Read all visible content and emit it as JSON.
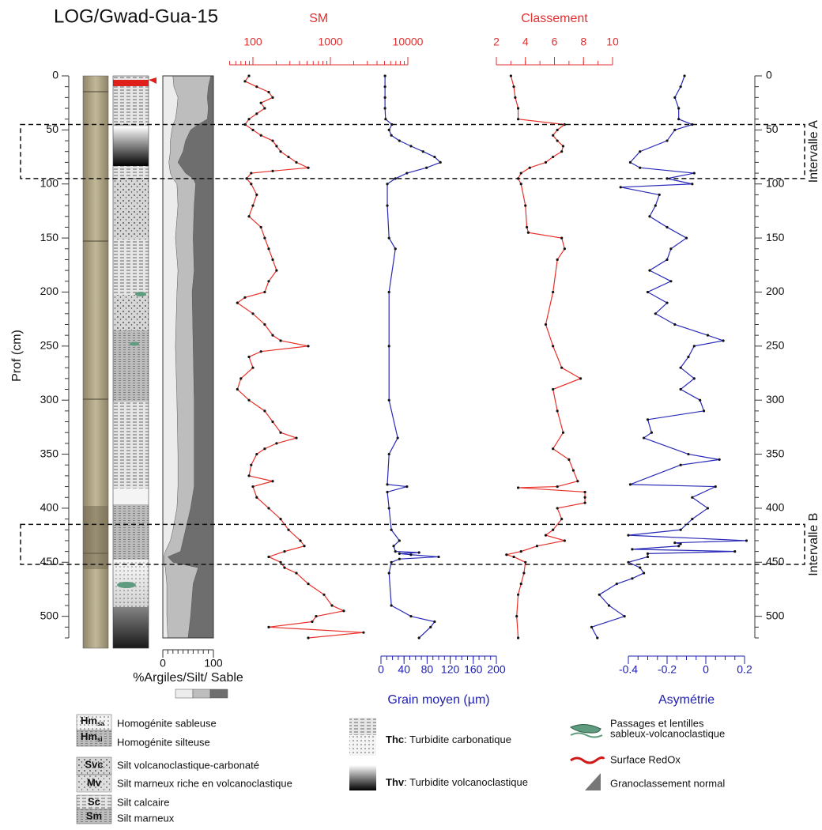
{
  "title": "LOG/Gwad-Gua-15",
  "depth_axis": {
    "label": "Prof (cm)",
    "ylim": [
      0,
      520
    ],
    "yticks": [
      0,
      50,
      100,
      150,
      200,
      250,
      300,
      350,
      400,
      450,
      500
    ]
  },
  "intervals": [
    {
      "label": "Intervalle A",
      "top": 45,
      "bottom": 95
    },
    {
      "label": "Intervalle B",
      "top": 415,
      "bottom": 452
    }
  ],
  "chart_data": [
    {
      "type": "area",
      "xlabel": "%Argiles/Silt/ Sable",
      "xlim": [
        0,
        100
      ],
      "xticks": [
        0,
        100
      ],
      "depths": [
        0,
        10,
        20,
        30,
        40,
        45,
        50,
        60,
        70,
        80,
        90,
        95,
        100,
        120,
        150,
        180,
        200,
        250,
        300,
        350,
        380,
        400,
        420,
        430,
        440,
        445,
        450,
        455,
        470,
        500,
        520
      ],
      "series": [
        {
          "color": "#ececec",
          "values": [
            20,
            22,
            30,
            28,
            25,
            20,
            18,
            15,
            15,
            12,
            15,
            20,
            28,
            30,
            25,
            30,
            28,
            25,
            28,
            30,
            30,
            28,
            20,
            15,
            5,
            2,
            2,
            5,
            8,
            8,
            10
          ]
        },
        {
          "color": "#bdbdbd",
          "values": [
            75,
            68,
            58,
            62,
            63,
            50,
            37,
            30,
            25,
            18,
            30,
            40,
            37,
            32,
            35,
            32,
            30,
            35,
            34,
            32,
            32,
            27,
            25,
            25,
            30,
            8,
            18,
            65,
            52,
            47,
            40
          ]
        },
        {
          "color": "#6e6e6e",
          "values": [
            5,
            10,
            12,
            10,
            12,
            30,
            45,
            55,
            60,
            70,
            55,
            40,
            35,
            38,
            40,
            38,
            42,
            40,
            38,
            38,
            38,
            45,
            55,
            60,
            65,
            90,
            80,
            30,
            40,
            45,
            50
          ]
        }
      ]
    },
    {
      "type": "line",
      "title": "SM",
      "log_x": true,
      "axis_position": "top",
      "color": "#e8302a",
      "marker_color": "#111111",
      "xlim": [
        50,
        10000
      ],
      "xticks": [
        100,
        1000,
        10000
      ],
      "depths": [
        0,
        5,
        10,
        15,
        20,
        25,
        30,
        35,
        40,
        45,
        50,
        55,
        60,
        65,
        70,
        75,
        80,
        85,
        88,
        90,
        95,
        100,
        110,
        120,
        130,
        140,
        150,
        160,
        170,
        180,
        190,
        200,
        205,
        210,
        220,
        230,
        240,
        245,
        250,
        255,
        260,
        270,
        280,
        290,
        300,
        310,
        320,
        330,
        335,
        340,
        345,
        350,
        360,
        370,
        375,
        380,
        390,
        400,
        410,
        420,
        430,
        435,
        440,
        445,
        450,
        455,
        460,
        470,
        480,
        490,
        495,
        500,
        505,
        510,
        515,
        520
      ],
      "values": [
        89,
        79,
        112,
        160,
        180,
        127,
        142,
        112,
        89,
        79,
        100,
        127,
        180,
        202,
        228,
        288,
        364,
        518,
        180,
        95,
        83,
        95,
        112,
        100,
        89,
        127,
        142,
        160,
        180,
        202,
        160,
        142,
        79,
        63,
        100,
        142,
        180,
        228,
        518,
        127,
        89,
        100,
        70,
        63,
        89,
        142,
        180,
        228,
        364,
        202,
        142,
        112,
        95,
        89,
        180,
        100,
        112,
        160,
        228,
        288,
        410,
        461,
        256,
        160,
        228,
        256,
        364,
        518,
        828,
        1048,
        1490,
        655,
        582,
        160,
        2680,
        518
      ]
    },
    {
      "type": "line",
      "xlabel": "Grain moyen (µm)",
      "axis_position": "bottom",
      "color": "#2a2ab8",
      "marker_color": "#111111",
      "xlim": [
        0,
        200
      ],
      "xticks": [
        0,
        40,
        80,
        120,
        160,
        200
      ],
      "depths": [
        0,
        10,
        20,
        30,
        40,
        45,
        50,
        55,
        60,
        65,
        70,
        75,
        80,
        85,
        90,
        95,
        100,
        120,
        150,
        160,
        200,
        250,
        300,
        335,
        350,
        378,
        380,
        385,
        400,
        420,
        430,
        435,
        440,
        441,
        442,
        443,
        445,
        447,
        450,
        460,
        490,
        500,
        505,
        510,
        520
      ],
      "values": [
        7,
        7,
        7,
        7,
        8,
        19,
        14,
        18,
        32,
        52,
        73,
        93,
        103,
        79,
        45,
        25,
        11,
        11,
        14,
        25,
        14,
        14,
        14,
        29,
        14,
        11,
        45,
        11,
        14,
        18,
        32,
        22,
        25,
        66,
        32,
        52,
        100,
        32,
        18,
        14,
        18,
        52,
        93,
        86,
        66
      ]
    },
    {
      "type": "line",
      "title": "Classement",
      "axis_position": "top",
      "color": "#e8302a",
      "marker_color": "#111111",
      "xlim": [
        2,
        10
      ],
      "xticks": [
        2,
        4,
        6,
        8,
        10
      ],
      "depths": [
        0,
        10,
        20,
        30,
        40,
        45,
        50,
        55,
        60,
        65,
        70,
        75,
        80,
        85,
        90,
        95,
        100,
        120,
        140,
        145,
        150,
        160,
        170,
        200,
        230,
        250,
        270,
        280,
        290,
        310,
        330,
        345,
        355,
        365,
        375,
        380,
        381,
        385,
        390,
        395,
        400,
        410,
        420,
        425,
        430,
        435,
        440,
        443,
        445,
        450,
        460,
        470,
        480,
        500,
        520
      ],
      "values": [
        3.0,
        3.2,
        3.3,
        3.5,
        3.5,
        6.7,
        6.2,
        5.9,
        6.2,
        6.6,
        6.5,
        5.9,
        5.4,
        4.3,
        3.7,
        3.5,
        3.7,
        4.0,
        4.1,
        4.2,
        6.5,
        6.7,
        6.2,
        5.9,
        5.4,
        5.9,
        6.5,
        7.8,
        5.9,
        6.2,
        6.6,
        5.9,
        7.0,
        7.3,
        7.6,
        6.2,
        3.5,
        8.1,
        8.1,
        8.1,
        6.2,
        6.5,
        5.9,
        5.4,
        6.7,
        4.8,
        3.7,
        2.7,
        3.2,
        4.0,
        3.9,
        3.7,
        3.5,
        3.4,
        3.5
      ]
    },
    {
      "type": "line",
      "xlabel": "Asymétrie",
      "axis_position": "bottom",
      "color": "#2a2ab8",
      "marker_color": "#111111",
      "xlim": [
        -0.4,
        0.2
      ],
      "xticks": [
        -0.4,
        -0.2,
        0,
        0.2
      ],
      "depths": [
        0,
        10,
        20,
        30,
        40,
        45,
        50,
        60,
        70,
        80,
        85,
        90,
        95,
        100,
        103,
        110,
        120,
        130,
        140,
        150,
        160,
        170,
        180,
        190,
        200,
        210,
        220,
        230,
        240,
        245,
        250,
        260,
        270,
        280,
        290,
        300,
        310,
        318,
        330,
        335,
        350,
        355,
        360,
        378,
        380,
        390,
        400,
        410,
        420,
        425,
        430,
        432,
        433,
        435,
        438,
        440,
        442,
        445,
        450,
        455,
        460,
        465,
        470,
        480,
        490,
        500,
        510,
        520
      ],
      "values": [
        -0.11,
        -0.13,
        -0.16,
        -0.14,
        -0.14,
        -0.07,
        -0.16,
        -0.2,
        -0.34,
        -0.39,
        -0.34,
        -0.06,
        -0.2,
        -0.07,
        -0.44,
        -0.24,
        -0.26,
        -0.29,
        -0.2,
        -0.1,
        -0.18,
        -0.2,
        -0.29,
        -0.18,
        -0.3,
        -0.2,
        -0.26,
        -0.16,
        0.01,
        0.09,
        -0.06,
        -0.09,
        -0.13,
        -0.06,
        -0.13,
        -0.03,
        -0.01,
        -0.3,
        -0.28,
        -0.32,
        -0.09,
        0.07,
        -0.13,
        -0.39,
        0.05,
        -0.07,
        0.01,
        -0.07,
        -0.13,
        -0.4,
        0.21,
        -0.16,
        -0.13,
        -0.14,
        -0.38,
        0.15,
        -0.3,
        -0.3,
        -0.4,
        -0.34,
        -0.32,
        -0.38,
        -0.46,
        -0.55,
        -0.5,
        -0.42,
        -0.59,
        -0.56
      ]
    }
  ],
  "legend": {
    "hm_sa": {
      "code": "Hm",
      "sub": "sa",
      "text": "Homogénite sableuse"
    },
    "hm_si": {
      "code": "Hm",
      "sub": "si",
      "text": "Homogénite silteuse"
    },
    "svc": {
      "code": "Svc",
      "text": "Silt volcanoclastique-carbonaté"
    },
    "mv": {
      "code": "Mv",
      "text": "Silt marneux riche en volcanoclastique"
    },
    "sc": {
      "code": "Sc",
      "text": "Silt calcaire"
    },
    "sm": {
      "code": "Sm",
      "text": "Silt marneux"
    },
    "thc": {
      "code": "Thc",
      "text": ": Turbidite carbonatique"
    },
    "thv": {
      "code": "Thv",
      "text": ": Turbidite volcanoclastique"
    },
    "lentilles": [
      "Passages et lentilles",
      "sableux-volcanoclastique"
    ],
    "redox": "Surface RedOx",
    "grano": "Granoclassement normal"
  }
}
